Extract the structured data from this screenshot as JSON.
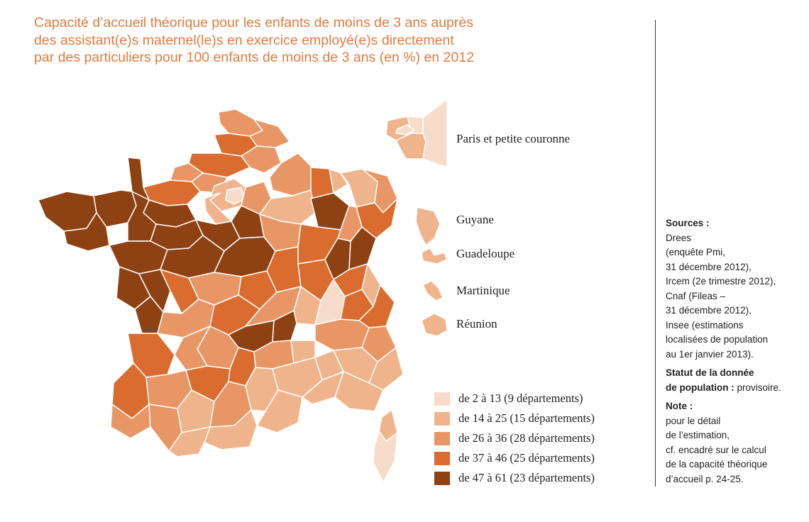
{
  "title_lines": [
    "Capacité d’accueil théorique pour les enfants de moins de 3 ans auprès",
    "des assistant(e)s maternel(le)s en exercice employé(e)s directement",
    "par des particuliers pour 100 enfants de moins de 3 ans (en %) en 2012"
  ],
  "overlay_labels": {
    "paris": "Paris et petite couronne",
    "guyane": "Guyane",
    "guadeloupe": "Guadeloupe",
    "martinique": "Martinique",
    "reunion": "Réunion"
  },
  "colors": {
    "c1": "#f7dcc9",
    "c2": "#f0b48d",
    "c3": "#e89666",
    "c4": "#d96c2e",
    "c5": "#8e4112",
    "title": "#e07b40",
    "border": "#ffffff"
  },
  "legend": [
    {
      "label": "de 2 à 13 (9 départements)",
      "class": "c1"
    },
    {
      "label": "de 14 à 25 (15 départements)",
      "class": "c2"
    },
    {
      "label": "de 26 à 36 (28 départements)",
      "class": "c3"
    },
    {
      "label": "de 37 à 46 (25 départements)",
      "class": "c4"
    },
    {
      "label": "de 47 à 61 (23 départements)",
      "class": "c5"
    }
  ],
  "sources": {
    "heading": "Sources :",
    "lines": [
      "Drees",
      "(enquête Pmi,",
      "31 décembre 2012),",
      "Ircem (2e trimestre 2012),",
      "Cnaf (Fileas –",
      "31 décembre 2012),",
      "Insee (estimations",
      "localisées de population",
      "au 1er janvier 2013)."
    ],
    "status_heading_1": "Statut de la donnée",
    "status_heading_2": "de population :",
    "status_value": "provisoire.",
    "note_heading": "Note :",
    "note_lines": [
      "pour le détail",
      "de l’estimation,",
      "cf. encadré sur le calcul",
      "de la capacité théorique",
      "d’accueil p. 24-25."
    ]
  }
}
